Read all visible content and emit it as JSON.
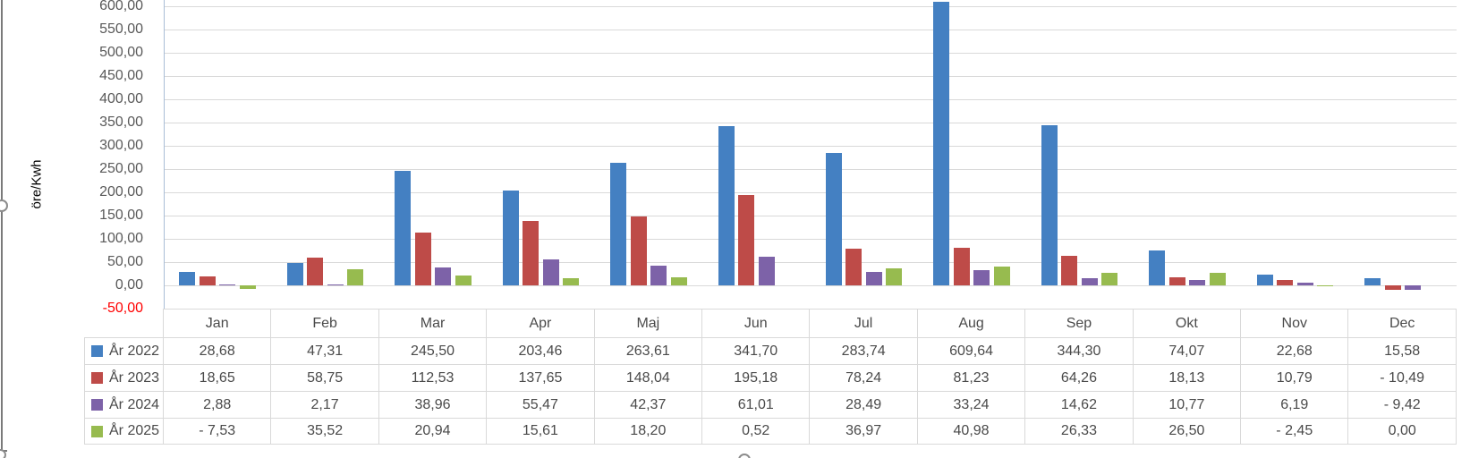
{
  "chart_data": {
    "type": "bar",
    "title": "",
    "ylabel": "öre/Kwh",
    "xlabel": "",
    "categories": [
      "Jan",
      "Feb",
      "Mar",
      "Apr",
      "Maj",
      "Jun",
      "Jul",
      "Aug",
      "Sep",
      "Okt",
      "Nov",
      "Dec"
    ],
    "series": [
      {
        "name": "År 2022",
        "color": "#4480C2",
        "values": [
          28.68,
          47.31,
          245.5,
          203.46,
          263.61,
          341.7,
          283.74,
          609.64,
          344.3,
          74.07,
          22.68,
          15.58
        ]
      },
      {
        "name": "År 2023",
        "color": "#BE4B48",
        "values": [
          18.65,
          58.75,
          112.53,
          137.65,
          148.04,
          195.18,
          78.24,
          81.23,
          64.26,
          18.13,
          10.79,
          -10.49
        ]
      },
      {
        "name": "År 2024",
        "color": "#7D62A8",
        "values": [
          2.88,
          2.17,
          38.96,
          55.47,
          42.37,
          61.01,
          28.49,
          33.24,
          14.62,
          10.77,
          6.19,
          -9.42
        ]
      },
      {
        "name": "År 2025",
        "color": "#97BB4F",
        "values": [
          -7.53,
          35.52,
          20.94,
          15.61,
          18.2,
          0.52,
          36.97,
          40.98,
          26.33,
          26.5,
          -2.45,
          0.0
        ]
      }
    ],
    "ylim": [
      -50,
      600
    ],
    "ytick_step": 50,
    "grid": true,
    "legend_position": "table-left-column",
    "yticks": [
      {
        "label": "600,00",
        "value": 600
      },
      {
        "label": "550,00",
        "value": 550
      },
      {
        "label": "500,00",
        "value": 500
      },
      {
        "label": "450,00",
        "value": 450
      },
      {
        "label": "400,00",
        "value": 400
      },
      {
        "label": "350,00",
        "value": 350
      },
      {
        "label": "300,00",
        "value": 300
      },
      {
        "label": "250,00",
        "value": 250
      },
      {
        "label": "200,00",
        "value": 200
      },
      {
        "label": "150,00",
        "value": 150
      },
      {
        "label": "100,00",
        "value": 100
      },
      {
        "label": "50,00",
        "value": 50
      },
      {
        "label": "0,00",
        "value": 0
      },
      {
        "label": "-50,00",
        "value": -50
      }
    ],
    "colors": {
      "axis_text": "#595959",
      "negative_tick_text": "#FF0000",
      "gridline": "#D9D9D9",
      "axis_line": "#A9BDD6",
      "table_border": "#D9D9D9",
      "table_text": "#4A4A4A",
      "selection_border": "#7A7A7A"
    }
  },
  "table": {
    "columns": [
      "Jan",
      "Feb",
      "Mar",
      "Apr",
      "Maj",
      "Jun",
      "Jul",
      "Aug",
      "Sep",
      "Okt",
      "Nov",
      "Dec"
    ],
    "rows": [
      {
        "label": "År 2022",
        "cells": [
          "28,68",
          "47,31",
          "245,50",
          "203,46",
          "263,61",
          "341,70",
          "283,74",
          "609,64",
          "344,30",
          "74,07",
          "22,68",
          "15,58"
        ]
      },
      {
        "label": "År 2023",
        "cells": [
          "18,65",
          "58,75",
          "112,53",
          "137,65",
          "148,04",
          "195,18",
          "78,24",
          "81,23",
          "64,26",
          "18,13",
          "10,79",
          "- 10,49"
        ]
      },
      {
        "label": "År 2024",
        "cells": [
          "2,88",
          "2,17",
          "38,96",
          "55,47",
          "42,37",
          "61,01",
          "28,49",
          "33,24",
          "14,62",
          "10,77",
          "6,19",
          "- 9,42"
        ]
      },
      {
        "label": "År 2025",
        "cells": [
          "- 7,53",
          "35,52",
          "20,94",
          "15,61",
          "18,20",
          "0,52",
          "36,97",
          "40,98",
          "26,33",
          "26,50",
          "- 2,45",
          "0,00"
        ]
      }
    ]
  }
}
